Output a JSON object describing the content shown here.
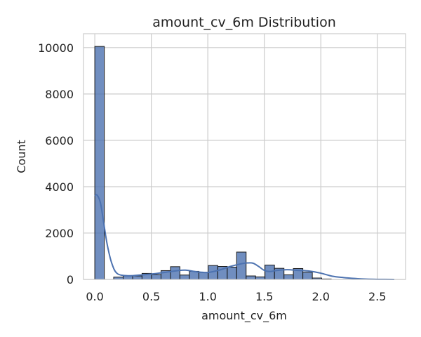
{
  "chart_data": {
    "type": "bar",
    "title": "amount_cv_6m Distribution",
    "xlabel": "amount_cv_6m",
    "ylabel": "Count",
    "xlim": [
      -0.1,
      2.75
    ],
    "ylim": [
      0,
      10600
    ],
    "xticks": [
      0.0,
      0.5,
      1.0,
      1.5,
      2.0,
      2.5
    ],
    "xtick_labels": [
      "0.0",
      "0.5",
      "1.0",
      "1.5",
      "2.0",
      "2.5"
    ],
    "yticks": [
      0,
      2000,
      4000,
      6000,
      8000,
      10000
    ],
    "ytick_labels": [
      "0",
      "2000",
      "4000",
      "6000",
      "8000",
      "10000"
    ],
    "grid": true,
    "series": [
      {
        "kind": "histogram",
        "bins": [
          {
            "x0": 0.0,
            "x1": 0.084,
            "count": 10050
          },
          {
            "x0": 0.084,
            "x1": 0.167,
            "count": 0
          },
          {
            "x0": 0.167,
            "x1": 0.251,
            "count": 100
          },
          {
            "x0": 0.251,
            "x1": 0.335,
            "count": 150
          },
          {
            "x0": 0.335,
            "x1": 0.418,
            "count": 150
          },
          {
            "x0": 0.418,
            "x1": 0.502,
            "count": 260
          },
          {
            "x0": 0.502,
            "x1": 0.586,
            "count": 210
          },
          {
            "x0": 0.586,
            "x1": 0.67,
            "count": 380
          },
          {
            "x0": 0.67,
            "x1": 0.753,
            "count": 550
          },
          {
            "x0": 0.753,
            "x1": 0.837,
            "count": 190
          },
          {
            "x0": 0.837,
            "x1": 0.921,
            "count": 350
          },
          {
            "x0": 0.921,
            "x1": 1.004,
            "count": 300
          },
          {
            "x0": 1.004,
            "x1": 1.088,
            "count": 600
          },
          {
            "x0": 1.088,
            "x1": 1.172,
            "count": 560
          },
          {
            "x0": 1.172,
            "x1": 1.255,
            "count": 530
          },
          {
            "x0": 1.255,
            "x1": 1.339,
            "count": 1180
          },
          {
            "x0": 1.339,
            "x1": 1.423,
            "count": 150
          },
          {
            "x0": 1.423,
            "x1": 1.506,
            "count": 110
          },
          {
            "x0": 1.506,
            "x1": 1.59,
            "count": 620
          },
          {
            "x0": 1.59,
            "x1": 1.674,
            "count": 480
          },
          {
            "x0": 1.674,
            "x1": 1.757,
            "count": 200
          },
          {
            "x0": 1.757,
            "x1": 1.841,
            "count": 470
          },
          {
            "x0": 1.841,
            "x1": 1.925,
            "count": 310
          },
          {
            "x0": 1.925,
            "x1": 2.008,
            "count": 60
          },
          {
            "x0": 2.008,
            "x1": 2.092,
            "count": 20
          }
        ]
      },
      {
        "kind": "kde",
        "x": [
          0.0,
          0.02,
          0.05,
          0.08,
          0.11,
          0.15,
          0.2,
          0.3,
          0.4,
          0.5,
          0.6,
          0.7,
          0.8,
          0.9,
          1.0,
          1.1,
          1.2,
          1.3,
          1.35,
          1.4,
          1.45,
          1.5,
          1.55,
          1.6,
          1.7,
          1.8,
          1.9,
          2.0,
          2.1,
          2.2,
          2.3,
          2.4,
          2.5,
          2.65
        ],
        "y": [
          3600,
          3640,
          3300,
          2400,
          1500,
          700,
          250,
          160,
          190,
          230,
          290,
          360,
          400,
          330,
          300,
          400,
          560,
          680,
          710,
          700,
          560,
          390,
          340,
          380,
          420,
          390,
          360,
          270,
          140,
          80,
          40,
          15,
          5,
          0
        ]
      }
    ],
    "colors": {
      "bar_fill": "#4c72b0",
      "bar_fill_opacity": 0.8,
      "kde_line": "#4c72b0",
      "grid": "#cccccc"
    }
  }
}
